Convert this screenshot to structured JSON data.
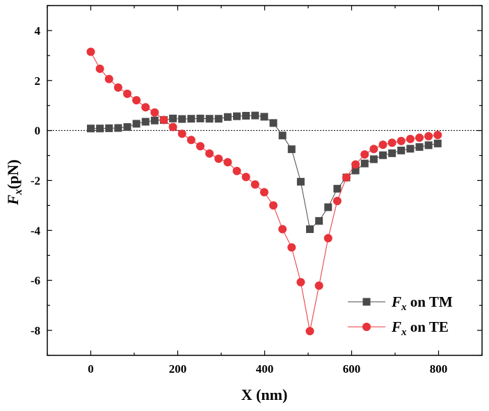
{
  "chart_data": {
    "type": "line",
    "xlabel": "X (nm)",
    "ylabel": {
      "italic": "F",
      "sub": "x",
      "rest": "(pN)"
    },
    "xlim": [
      -100,
      900
    ],
    "ylim": [
      -9,
      5
    ],
    "xticks": [
      0,
      200,
      400,
      600,
      800
    ],
    "yticks": [
      4,
      2,
      0,
      -2,
      -4,
      -6,
      -8
    ],
    "zero_line": true,
    "legend_position": "bottom-right",
    "series": [
      {
        "name": {
          "italic": "F",
          "sub": "x",
          "rest": " on TM"
        },
        "color": "#4a4a4a",
        "marker": "square",
        "x": [
          0,
          21,
          42,
          63,
          84,
          105,
          126,
          147,
          168,
          189,
          210,
          231,
          252,
          273,
          294,
          315,
          336,
          357,
          378,
          399,
          420,
          441,
          462,
          483,
          504,
          525,
          546,
          567,
          588,
          609,
          630,
          651,
          672,
          693,
          714,
          735,
          756,
          777,
          798
        ],
        "y": [
          0.08,
          0.08,
          0.09,
          0.1,
          0.14,
          0.27,
          0.35,
          0.4,
          0.42,
          0.48,
          0.46,
          0.47,
          0.48,
          0.47,
          0.47,
          0.54,
          0.57,
          0.59,
          0.6,
          0.55,
          0.3,
          -0.2,
          -0.75,
          -2.05,
          -3.95,
          -3.62,
          -3.07,
          -2.33,
          -1.88,
          -1.6,
          -1.32,
          -1.15,
          -0.99,
          -0.91,
          -0.8,
          -0.73,
          -0.66,
          -0.59,
          -0.52
        ]
      },
      {
        "name": {
          "italic": "F",
          "sub": "x",
          "rest": " on TE"
        },
        "color": "#e8333a",
        "marker": "circle",
        "x": [
          0,
          21,
          42,
          63,
          84,
          105,
          126,
          147,
          168,
          189,
          210,
          231,
          252,
          273,
          294,
          315,
          336,
          357,
          378,
          399,
          420,
          441,
          462,
          483,
          504,
          525,
          546,
          567,
          588,
          609,
          630,
          651,
          672,
          693,
          714,
          735,
          756,
          777,
          798
        ],
        "y": [
          3.15,
          2.47,
          2.06,
          1.72,
          1.47,
          1.21,
          0.93,
          0.72,
          0.42,
          0.14,
          -0.13,
          -0.38,
          -0.63,
          -0.92,
          -1.13,
          -1.27,
          -1.62,
          -1.86,
          -2.16,
          -2.47,
          -3.0,
          -3.95,
          -4.68,
          -6.07,
          -8.03,
          -6.21,
          -4.31,
          -2.82,
          -1.88,
          -1.36,
          -0.96,
          -0.74,
          -0.57,
          -0.49,
          -0.42,
          -0.34,
          -0.29,
          -0.23,
          -0.18
        ]
      }
    ]
  }
}
